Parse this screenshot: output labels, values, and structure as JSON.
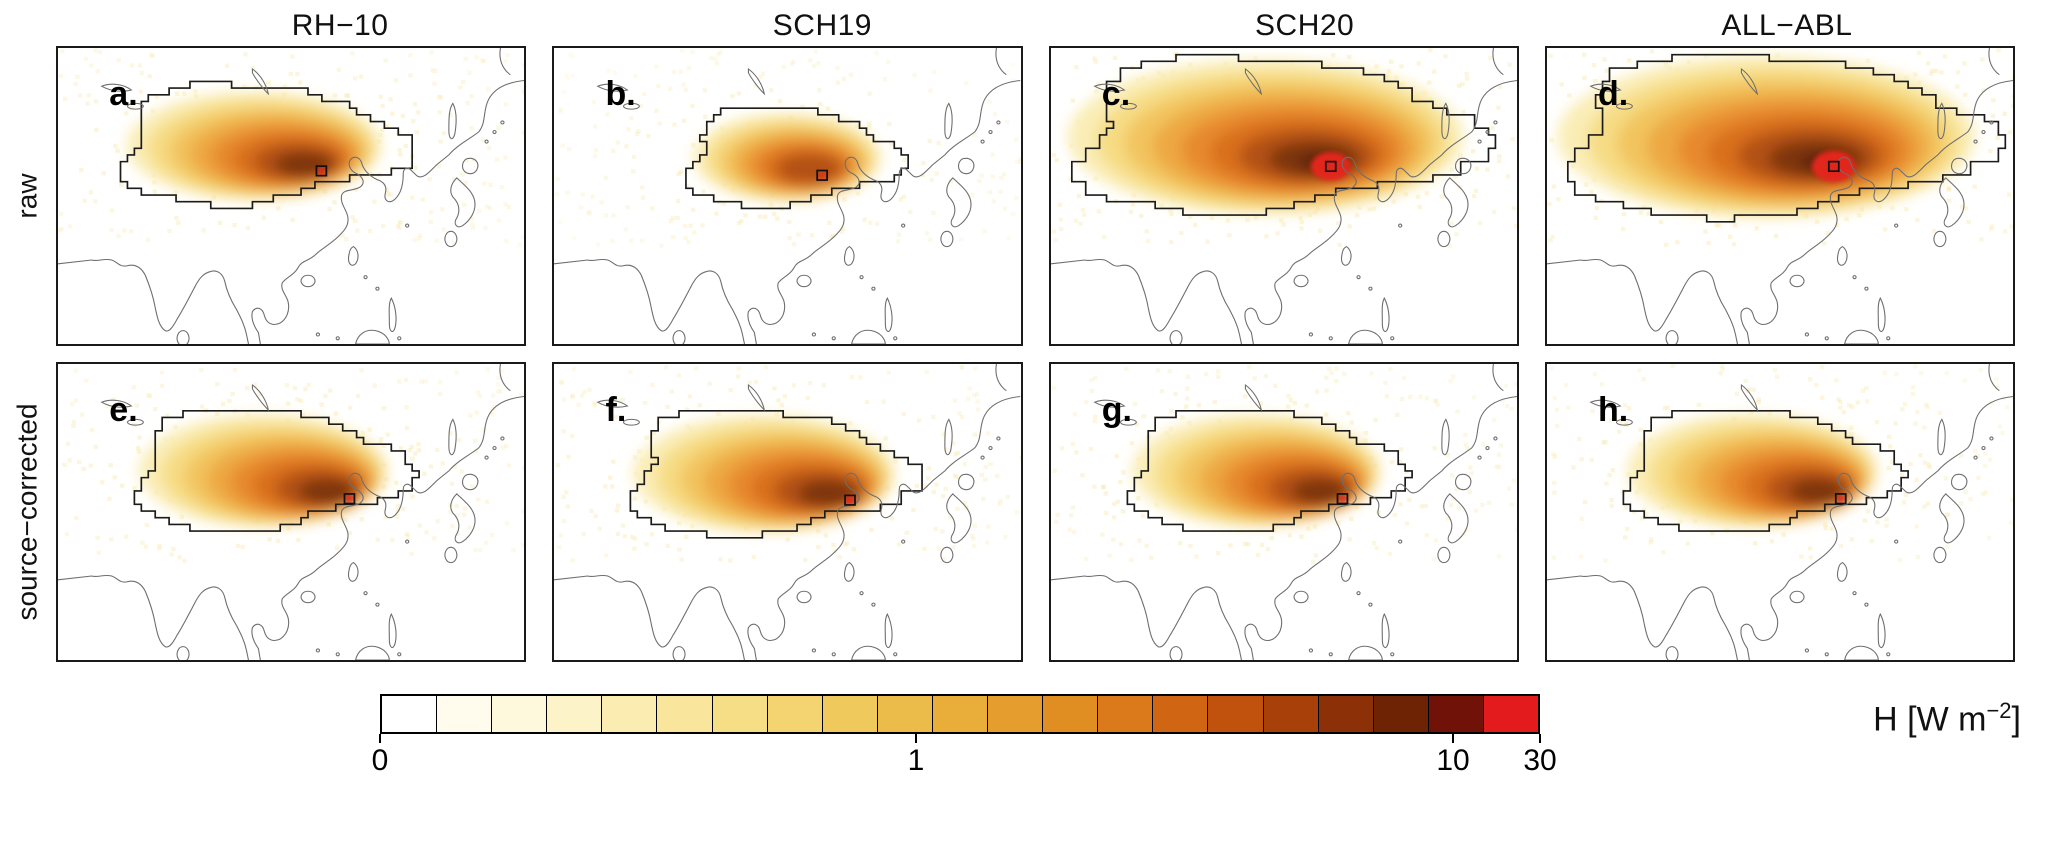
{
  "chart_data": {
    "type": "heatmap",
    "layout": "2x4 map panels with shared horizontal colorbar",
    "region": "Asia (coastline outline map)",
    "value_label": "H [W m−2]",
    "columns": [
      "RH−10",
      "SCH19",
      "SCH20",
      "ALL−ABL"
    ],
    "rows": [
      "raw",
      "source−corrected"
    ],
    "panels": [
      {
        "letter": "a.",
        "column": "RH−10",
        "row": "raw",
        "relative_intensity": 0.62,
        "red": 0.12,
        "contour": {
          "cx": 0.42,
          "cy": 0.33,
          "rx": 0.295,
          "ry": 0.2
        },
        "core": {
          "x": 0.565,
          "y": 0.415
        }
      },
      {
        "letter": "b.",
        "column": "SCH19",
        "row": "raw",
        "relative_intensity": 0.58,
        "red": 0.1,
        "contour": {
          "cx": 0.5,
          "cy": 0.37,
          "rx": 0.22,
          "ry": 0.165
        },
        "core": {
          "x": 0.575,
          "y": 0.43
        }
      },
      {
        "letter": "c.",
        "column": "SCH20",
        "row": "raw",
        "relative_intensity": 0.97,
        "red": 0.5,
        "contour": {
          "cx": 0.46,
          "cy": 0.3,
          "rx": 0.42,
          "ry": 0.26
        },
        "core": {
          "x": 0.6,
          "y": 0.4
        }
      },
      {
        "letter": "d.",
        "column": "ALL−ABL",
        "row": "raw",
        "relative_intensity": 1.0,
        "red": 0.55,
        "contour": {
          "cx": 0.47,
          "cy": 0.3,
          "rx": 0.44,
          "ry": 0.27
        },
        "core": {
          "x": 0.615,
          "y": 0.4
        }
      },
      {
        "letter": "e.",
        "column": "RH−10",
        "row": "source−corrected",
        "relative_intensity": 0.66,
        "red": 0.12,
        "contour": {
          "cx": 0.44,
          "cy": 0.36,
          "rx": 0.285,
          "ry": 0.205
        },
        "core": {
          "x": 0.625,
          "y": 0.455
        }
      },
      {
        "letter": "f.",
        "column": "SCH19",
        "row": "source−corrected",
        "relative_intensity": 0.72,
        "red": 0.14,
        "contour": {
          "cx": 0.45,
          "cy": 0.37,
          "rx": 0.295,
          "ry": 0.21
        },
        "core": {
          "x": 0.635,
          "y": 0.46
        }
      },
      {
        "letter": "g.",
        "column": "SCH20",
        "row": "source−corrected",
        "relative_intensity": 0.66,
        "red": 0.12,
        "contour": {
          "cx": 0.44,
          "cy": 0.36,
          "rx": 0.285,
          "ry": 0.205
        },
        "core": {
          "x": 0.625,
          "y": 0.455
        }
      },
      {
        "letter": "h.",
        "column": "ALL−ABL",
        "row": "source−corrected",
        "relative_intensity": 0.68,
        "red": 0.12,
        "contour": {
          "cx": 0.44,
          "cy": 0.36,
          "rx": 0.285,
          "ry": 0.205
        },
        "core": {
          "x": 0.63,
          "y": 0.455
        }
      }
    ],
    "colorbar": {
      "scale": "nonlinear (0 to 30, 1 and 10 marked)",
      "label_prefix": "H [W m",
      "label_sup": "−2",
      "label_suffix": "]",
      "ticks": [
        {
          "label": "0",
          "pos": 0.0
        },
        {
          "label": "1",
          "pos": 0.462
        },
        {
          "label": "10",
          "pos": 0.925
        },
        {
          "label": "30",
          "pos": 1.0
        }
      ],
      "colors": [
        "#FFFFFF",
        "#FFFCEE",
        "#FEF8DC",
        "#FDF3C8",
        "#FBEDB2",
        "#F9E69C",
        "#F6DE86",
        "#F3D470",
        "#F0C95C",
        "#ECBC4A",
        "#E9AE3A",
        "#E59E2D",
        "#E08D22",
        "#DA7A1A",
        "#D06613",
        "#C0520E",
        "#A8400A",
        "#8B3007",
        "#6E2305",
        "#701208",
        "#E31B1C"
      ]
    }
  }
}
